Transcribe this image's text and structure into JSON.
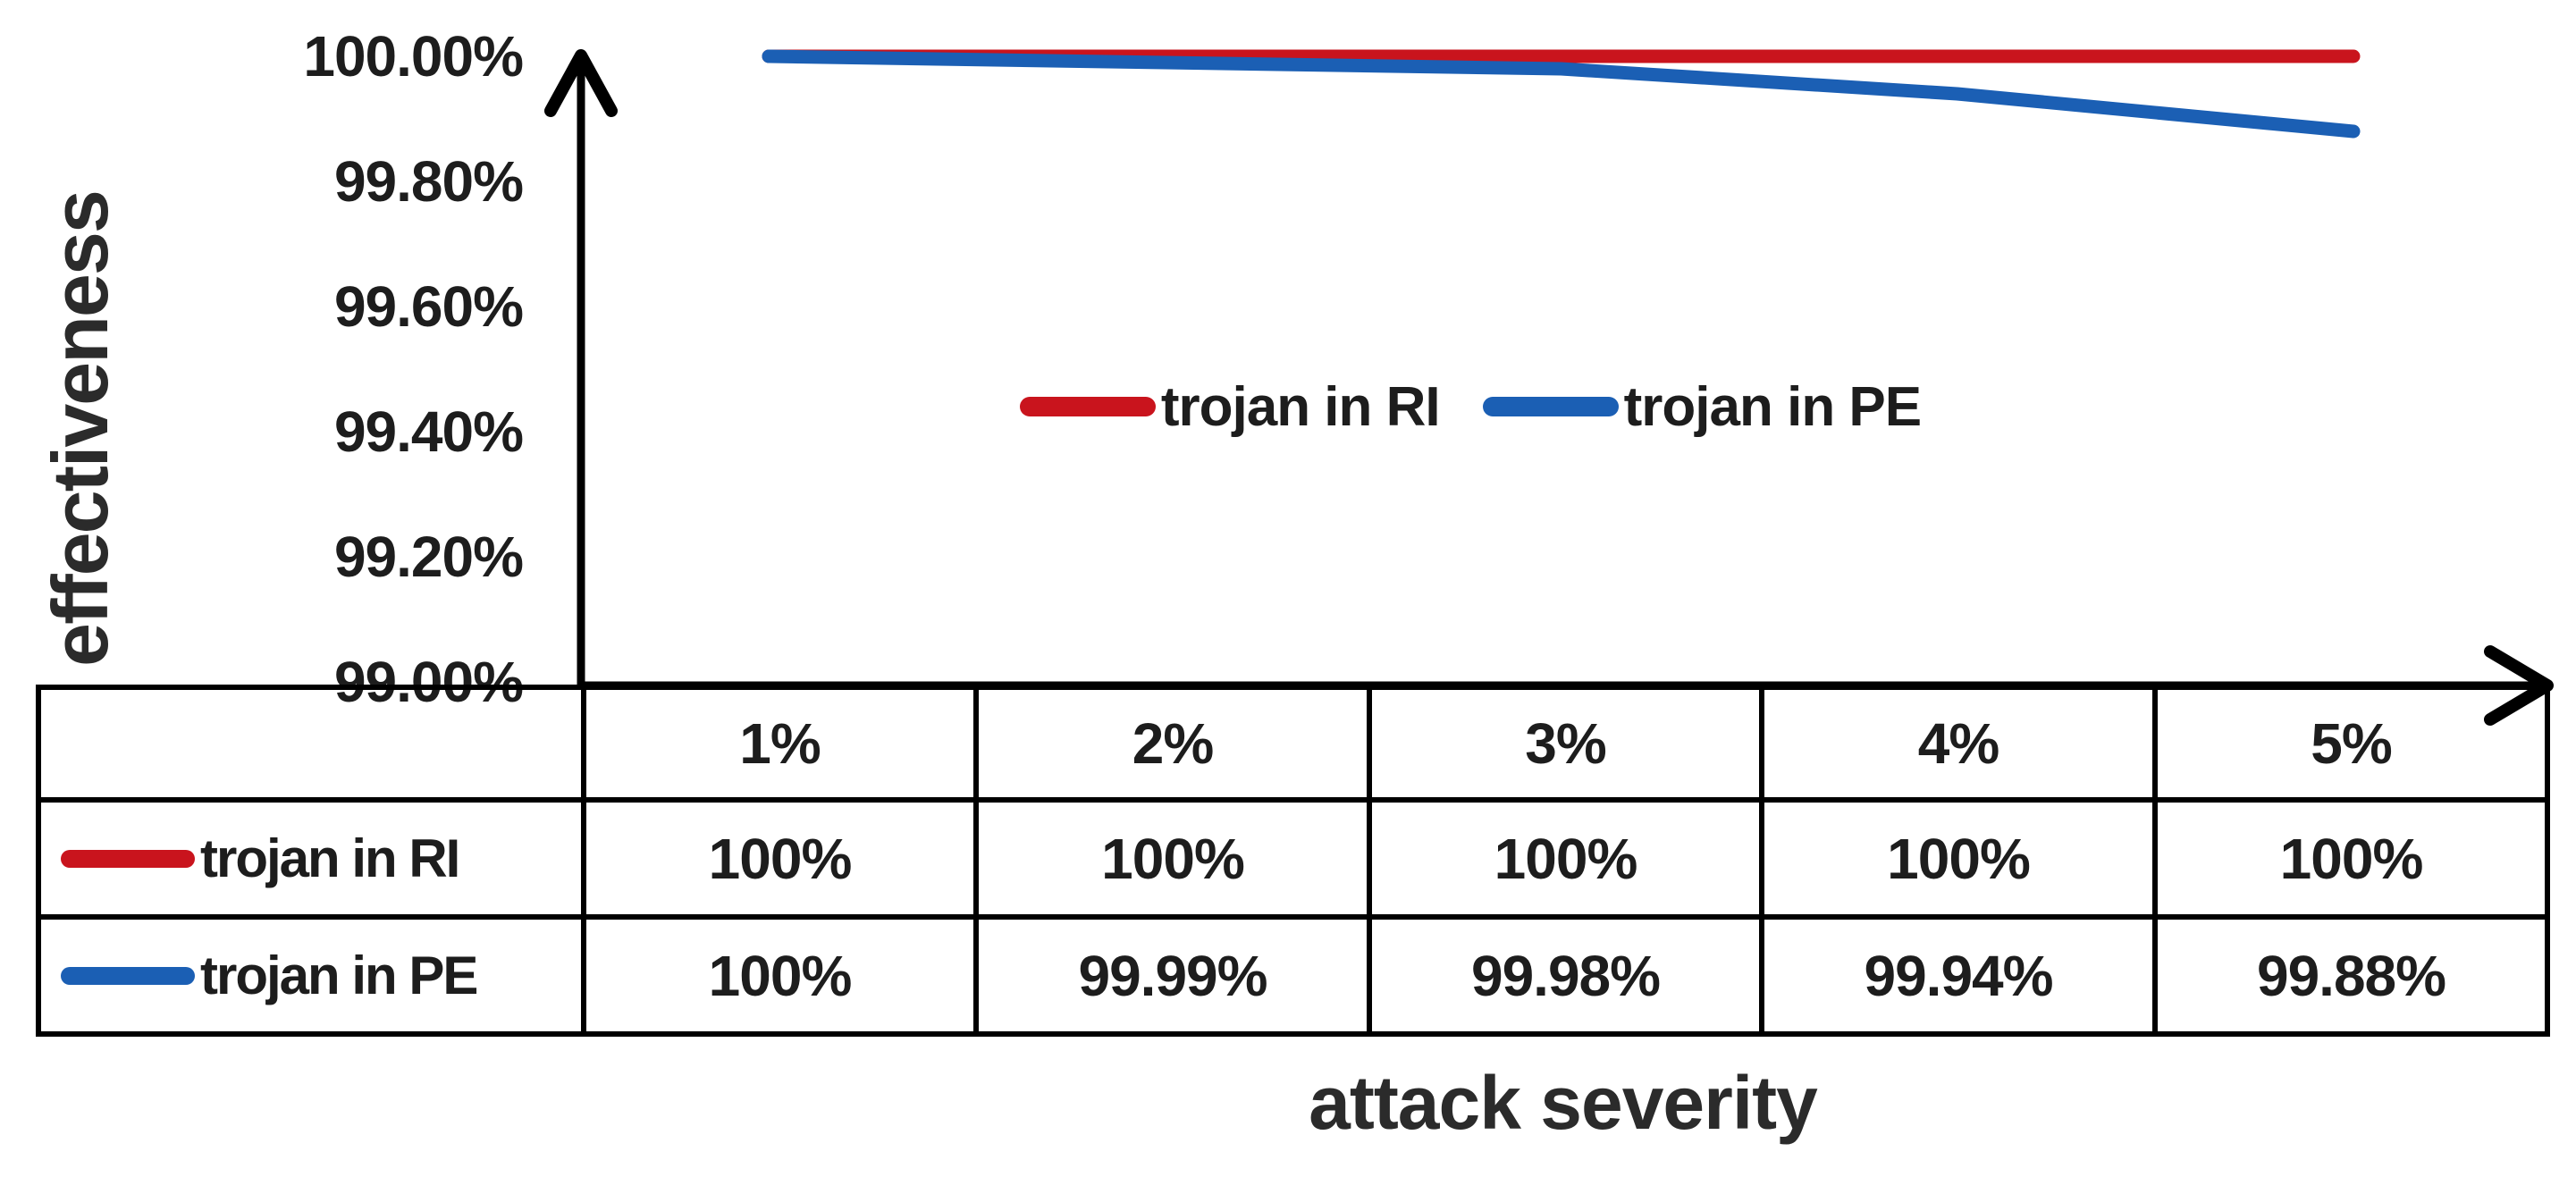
{
  "y_axis": {
    "label": "effectiveness",
    "ticks": [
      "100.00%",
      "99.80%",
      "99.60%",
      "99.40%",
      "99.20%",
      "99.00%"
    ]
  },
  "x_axis": {
    "label": "attack severity"
  },
  "legend": {
    "items": [
      {
        "label": "trojan in RI",
        "color": "#c9141d"
      },
      {
        "label": "trojan in PE",
        "color": "#1b5fb4"
      }
    ]
  },
  "table": {
    "columns": [
      "1%",
      "2%",
      "3%",
      "4%",
      "5%"
    ],
    "rows": [
      {
        "label": "trojan in RI",
        "color": "#c9141d",
        "values": [
          "100%",
          "100%",
          "100%",
          "100%",
          "100%"
        ]
      },
      {
        "label": "trojan in PE",
        "color": "#1b5fb4",
        "values": [
          "100%",
          "99.99%",
          "99.98%",
          "99.94%",
          "99.88%"
        ]
      }
    ]
  },
  "chart_data": {
    "type": "line",
    "categories": [
      "1%",
      "2%",
      "3%",
      "4%",
      "5%"
    ],
    "series": [
      {
        "name": "trojan in RI",
        "color": "#c9141d",
        "values": [
          100,
          100,
          100,
          100,
          100
        ]
      },
      {
        "name": "trojan in PE",
        "color": "#1b5fb4",
        "values": [
          100,
          99.99,
          99.98,
          99.94,
          99.88
        ]
      }
    ],
    "title": "",
    "xlabel": "attack severity",
    "ylabel": "effectiveness",
    "ylim": [
      99.0,
      100.0
    ],
    "y_tick_step": 0.2,
    "grid": false,
    "legend_position": "center-of-plot"
  }
}
